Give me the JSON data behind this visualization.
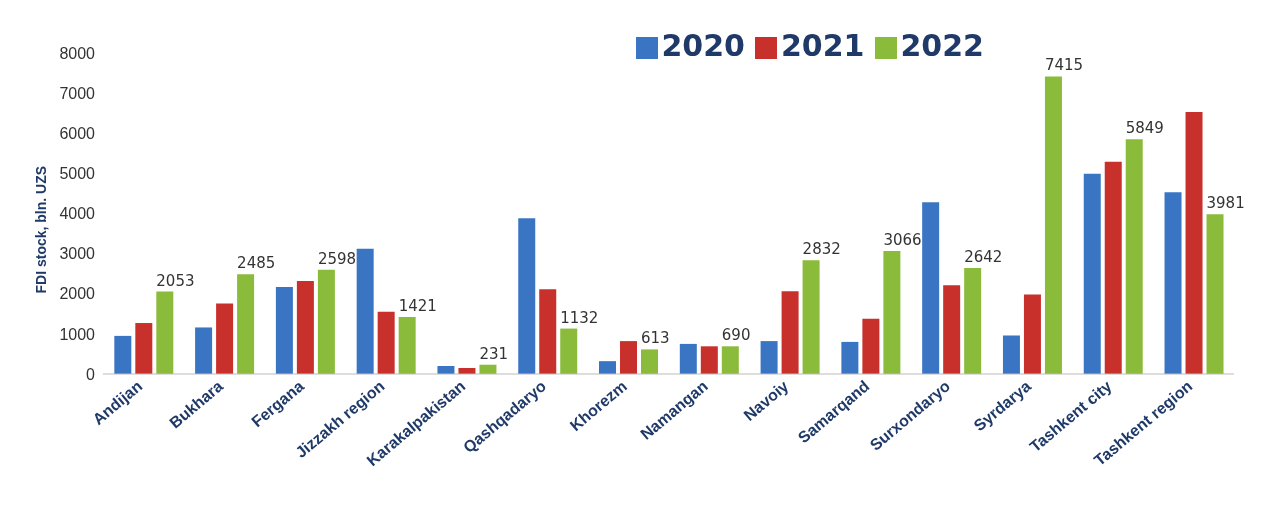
{
  "chart_data": {
    "type": "bar",
    "ylabel": "FDI stock, bln. UZS",
    "categories": [
      "Andijan",
      "Bukhara",
      "Fergana",
      "Jizzakh region",
      "Karakalpakistan",
      "Qashqadaryo",
      "Khorezm",
      "Namangan",
      "Navoiy",
      "Samarqand",
      "Surxondaryo",
      "Syrdarya",
      "Tashkent city",
      "Tashkent region"
    ],
    "series": [
      {
        "name": "2020",
        "color": "#3a75c4",
        "values": [
          950,
          1160,
          2170,
          3120,
          200,
          3880,
          320,
          750,
          820,
          800,
          4280,
          960,
          4990,
          4530
        ]
      },
      {
        "name": "2021",
        "color": "#c8302c",
        "values": [
          1270,
          1760,
          2320,
          1550,
          150,
          2110,
          820,
          690,
          2060,
          1380,
          2210,
          1980,
          5290,
          6530
        ]
      },
      {
        "name": "2022",
        "color": "#8bbb3a",
        "values": [
          2053,
          2485,
          2598,
          1421,
          231,
          1132,
          613,
          690,
          2832,
          3066,
          2642,
          7415,
          5849,
          3981
        ],
        "value_labels": [
          "2053",
          "2485",
          "2598",
          "1421",
          "231",
          "1132",
          "613",
          "690",
          "2832",
          "3066",
          "2642",
          "7415",
          "5849",
          "3981"
        ]
      }
    ],
    "ylim": [
      0,
      8000
    ],
    "yticks": [
      0,
      1000,
      2000,
      3000,
      4000,
      5000,
      6000,
      7000,
      8000
    ],
    "legend": "top right"
  }
}
